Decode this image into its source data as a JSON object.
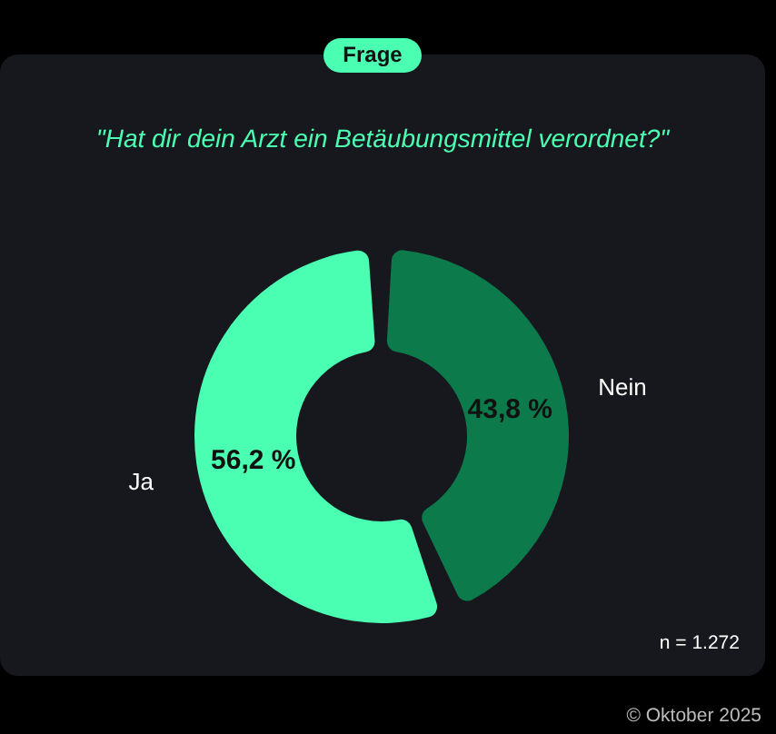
{
  "chart_data": {
    "type": "donut",
    "subtitle": "Frage",
    "title": "\"Hat dir dein Arzt ein Betäubungsmittel verordnet?\"",
    "categories": [
      "Nein",
      "Ja"
    ],
    "values": [
      43.8,
      56.2
    ],
    "value_labels": [
      "43,8 %",
      "56,2 %"
    ],
    "colors": [
      "#0d7a4b",
      "#4affb2"
    ],
    "legend": false,
    "annotations": [
      "n = 1.272",
      "© Oktober 2025"
    ]
  }
}
